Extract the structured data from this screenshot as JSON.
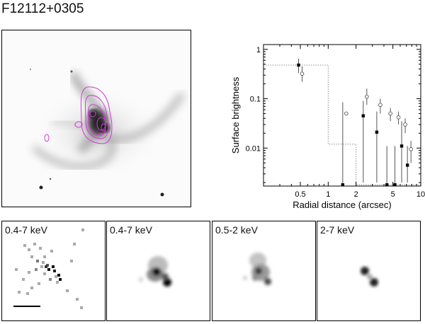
{
  "figure": {
    "title": "F12112+0305"
  },
  "chart_data": {
    "type": "scatter",
    "xlabel": "Radial distance (arcsec)",
    "ylabel": "Surface brightness",
    "xscale": "log",
    "yscale": "log",
    "xlim": [
      0.2,
      10
    ],
    "ylim": [
      0.0017,
      1.25
    ],
    "x_ticks": [
      {
        "v": 0.5,
        "label": "0.5"
      },
      {
        "v": 1,
        "label": "1"
      },
      {
        "v": 2,
        "label": "2"
      },
      {
        "v": 5,
        "label": "5"
      },
      {
        "v": 10,
        "label": "10"
      }
    ],
    "y_ticks": [
      {
        "v": 1,
        "label": "1"
      },
      {
        "v": 0.1,
        "label": "0.1"
      },
      {
        "v": 0.01,
        "label": "0.01"
      }
    ],
    "series": [
      {
        "marker": "filled-square",
        "points": [
          {
            "x": 0.5,
            "y": 0.48,
            "lo": 0.33,
            "hi": 0.65
          },
          {
            "x": 1.5,
            "y": 0.0018,
            "lo": 0.0018,
            "hi": 0.085
          },
          {
            "x": 2.5,
            "y": 0.045,
            "lo": 0.002,
            "hi": 0.09
          },
          {
            "x": 3.5,
            "y": 0.021,
            "lo": 0.002,
            "hi": 0.055
          },
          {
            "x": 4.5,
            "y": 0.0018,
            "lo": 0.0018,
            "hi": 0.011
          },
          {
            "x": 5.5,
            "y": 0.0018,
            "lo": 0.0018,
            "hi": 0.011
          },
          {
            "x": 6.5,
            "y": 0.011,
            "lo": 0.002,
            "hi": 0.035
          },
          {
            "x": 7.5,
            "y": 0.0045,
            "lo": 0.002,
            "hi": 0.011
          }
        ]
      },
      {
        "marker": "open-circle",
        "points": [
          {
            "x": 0.5,
            "y": 0.32,
            "lo": 0.22,
            "hi": 0.45
          },
          {
            "x": 1.5,
            "y": 0.05
          },
          {
            "x": 2.5,
            "y": 0.11,
            "lo": 0.075,
            "hi": 0.16
          },
          {
            "x": 3.5,
            "y": 0.075,
            "lo": 0.05,
            "hi": 0.1
          },
          {
            "x": 4.5,
            "y": 0.05,
            "lo": 0.035,
            "hi": 0.065
          },
          {
            "x": 5.5,
            "y": 0.042,
            "lo": 0.03,
            "hi": 0.055
          },
          {
            "x": 6.5,
            "y": 0.03,
            "lo": 0.02,
            "hi": 0.04
          },
          {
            "x": 7.5,
            "y": 0.0095,
            "lo": 0.005,
            "hi": 0.014
          }
        ]
      }
    ],
    "reference_profile": {
      "style": "dotted-step",
      "steps": [
        {
          "x0": 0.2,
          "x1": 1.0,
          "y": 0.48
        },
        {
          "x0": 1.0,
          "x1": 2.0,
          "y": 0.012
        },
        {
          "x0": 2.0,
          "x1": 10,
          "y": 0.0018
        }
      ]
    }
  },
  "panels": [
    {
      "label": "0.4-7 keV",
      "style": "binned"
    },
    {
      "label": "0.4-7 keV",
      "style": "smoothed"
    },
    {
      "label": "0.5-2 keV",
      "style": "smoothed-soft"
    },
    {
      "label": "2-7 keV",
      "style": "smoothed-hard"
    }
  ],
  "colors": {
    "contour": "#d23cd6",
    "frame": "#000000"
  }
}
